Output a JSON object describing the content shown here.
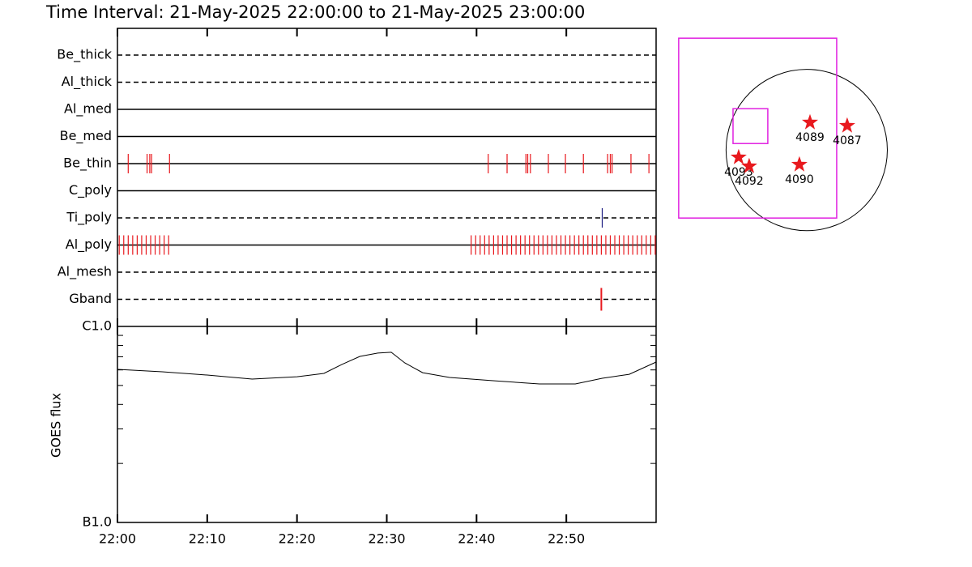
{
  "chart_data": [
    {
      "type": "timeline",
      "title": "Time Interval: 21-May-2025 22:00:00 to 21-May-2025 23:00:00",
      "xlim": [
        0,
        60
      ],
      "rows": [
        {
          "name": "Be_thick",
          "style": "dashed",
          "events": []
        },
        {
          "name": "Al_thick",
          "style": "dashed",
          "events": []
        },
        {
          "name": "Al_med",
          "style": "solid",
          "events": []
        },
        {
          "name": "Be_med",
          "style": "solid",
          "events": []
        },
        {
          "name": "Be_thin",
          "style": "solid",
          "color": "#e8191e",
          "events": [
            1.2,
            3.3,
            3.6,
            3.8,
            5.8,
            41.3,
            43.4,
            45.5,
            45.7,
            46.0,
            48.0,
            49.9,
            51.9,
            54.6,
            54.9,
            55.1,
            57.2,
            59.2
          ]
        },
        {
          "name": "C_poly",
          "style": "solid",
          "events": []
        },
        {
          "name": "Ti_poly",
          "style": "dashed",
          "color": "#1a1a80",
          "events": [
            54.0
          ]
        },
        {
          "name": "Al_poly",
          "style": "solid",
          "color": "#e8191e",
          "events": [
            0.2,
            0.7,
            1.2,
            1.7,
            2.2,
            2.7,
            3.2,
            3.7,
            4.2,
            4.7,
            5.2,
            5.7,
            39.4,
            39.9,
            40.4,
            40.9,
            41.4,
            41.9,
            42.4,
            42.9,
            43.4,
            43.9,
            44.4,
            44.9,
            45.4,
            45.9,
            46.4,
            46.9,
            47.4,
            47.9,
            48.4,
            48.9,
            49.4,
            49.9,
            50.4,
            50.9,
            51.4,
            51.9,
            52.4,
            52.9,
            53.4,
            53.9,
            54.4,
            54.9,
            55.4,
            55.9,
            56.4,
            56.9,
            57.4,
            57.9,
            58.4,
            58.9,
            59.4,
            59.9
          ]
        },
        {
          "name": "Al_mesh",
          "style": "dashed",
          "events": []
        },
        {
          "name": "Gband",
          "style": "dashed",
          "color": "#e8191e",
          "events": [
            53.9
          ]
        }
      ]
    },
    {
      "type": "line",
      "ylabel": "GOES flux",
      "log_y": true,
      "color": "#000000",
      "xlim": [
        0,
        60
      ],
      "xticks": [
        {
          "value": 0,
          "label": "22:00"
        },
        {
          "value": 10,
          "label": "22:10"
        },
        {
          "value": 20,
          "label": "22:20"
        },
        {
          "value": 30,
          "label": "22:30"
        },
        {
          "value": 40,
          "label": "22:40"
        },
        {
          "value": 50,
          "label": "22:50"
        }
      ],
      "ylim": [
        1e-07,
        1e-06
      ],
      "yticks": [
        {
          "value": 1e-07,
          "label": "B1.0"
        },
        {
          "value": 1e-06,
          "label": "C1.0"
        }
      ],
      "yminorticks": [
        2e-07,
        3e-07,
        4e-07,
        5e-07,
        6e-07,
        7e-07,
        8e-07,
        9e-07
      ],
      "x": [
        0,
        5,
        10,
        15,
        20,
        23,
        25,
        27,
        29,
        30.5,
        32,
        34,
        37,
        42,
        47,
        51,
        54,
        57,
        60
      ],
      "values": [
        6.04e-07,
        5.87e-07,
        5.65e-07,
        5.39e-07,
        5.54e-07,
        5.76e-07,
        6.4e-07,
        7.03e-07,
        7.31e-07,
        7.38e-07,
        6.52e-07,
        5.81e-07,
        5.49e-07,
        5.28e-07,
        5.09e-07,
        5.09e-07,
        5.44e-07,
        5.7e-07,
        6.58e-07
      ]
    },
    {
      "type": "map",
      "xlim": [
        -1600,
        1100
      ],
      "ylim": [
        -1000,
        1400
      ],
      "rsun": 960,
      "fov_color": "#e020e0",
      "fov": [
        [
          -1524,
          -810,
          357,
          1331
        ],
        [
          -877,
          77,
          -463,
          492
        ]
      ],
      "marker_color": "#e8191e",
      "regions": [
        {
          "label": "4089",
          "x": 39,
          "y": 328
        },
        {
          "label": "4087",
          "x": 482,
          "y": 289
        },
        {
          "label": "4093",
          "x": -810,
          "y": -87
        },
        {
          "label": "4092",
          "x": -685,
          "y": -193
        },
        {
          "label": "4090",
          "x": -87,
          "y": -174
        }
      ]
    }
  ]
}
